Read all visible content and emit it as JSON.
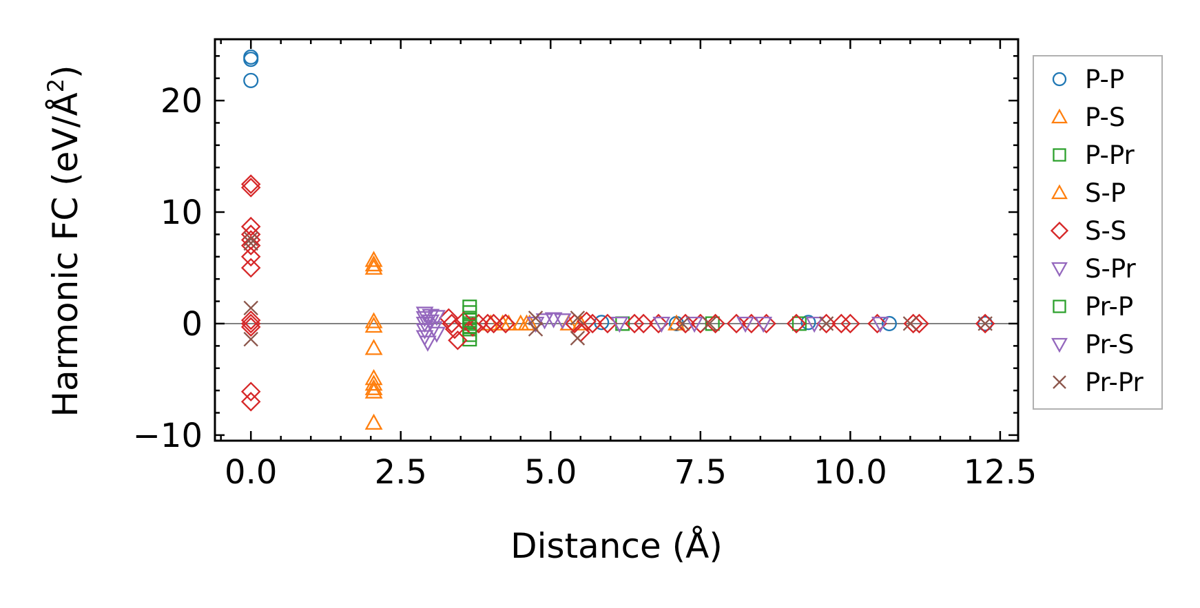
{
  "chart_data": {
    "type": "scatter",
    "title": "",
    "xlabel": "Distance (Å)",
    "ylabel": "Harmonic FC (eV/Å",
    "ylabel_sup": "2",
    "ylabel_close": ")",
    "xlim": [
      -0.6,
      12.8
    ],
    "ylim": [
      -10.5,
      25.5
    ],
    "xticks": [
      0.0,
      2.5,
      5.0,
      7.5,
      10.0,
      12.5
    ],
    "xtick_labels": [
      "0.0",
      "2.5",
      "5.0",
      "7.5",
      "10.0",
      "12.5"
    ],
    "yticks": [
      -10,
      0,
      10,
      20
    ],
    "ytick_labels": [
      "−10",
      "0",
      "10",
      "20"
    ],
    "zero_line": true,
    "legend_position": "right",
    "series": [
      {
        "name": "P-P",
        "marker": "circle",
        "color": "#1f77b4",
        "points": [
          [
            0,
            23.9
          ],
          [
            0,
            23.7
          ],
          [
            0,
            21.8
          ],
          [
            5.85,
            0.1
          ],
          [
            7.1,
            0.0
          ],
          [
            9.3,
            0.1
          ],
          [
            10.65,
            0.0
          ],
          [
            12.25,
            0.0
          ]
        ]
      },
      {
        "name": "P-S",
        "marker": "triangle-up",
        "color": "#ff7f0e",
        "points": [
          [
            2.05,
            5.7
          ],
          [
            2.05,
            5.3
          ],
          [
            2.05,
            5.0
          ],
          [
            2.05,
            0.2
          ],
          [
            2.05,
            -0.2
          ],
          [
            2.05,
            -2.2
          ],
          [
            2.05,
            -4.9
          ],
          [
            2.05,
            -5.4
          ],
          [
            2.05,
            -5.8
          ],
          [
            2.05,
            -6.1
          ],
          [
            2.05,
            -8.9
          ],
          [
            4.0,
            0.0
          ],
          [
            4.3,
            0.0
          ],
          [
            4.5,
            0.0
          ],
          [
            4.65,
            0.0
          ],
          [
            5.3,
            0.0
          ],
          [
            7.1,
            0.0
          ]
        ]
      },
      {
        "name": "P-Pr",
        "marker": "square",
        "color": "#2ca02c",
        "points": [
          [
            3.65,
            1.5
          ],
          [
            3.65,
            1.0
          ],
          [
            3.65,
            0.5
          ],
          [
            3.65,
            0.0
          ],
          [
            3.65,
            -0.5
          ],
          [
            3.65,
            -1.0
          ],
          [
            3.65,
            -1.4
          ],
          [
            6.2,
            0.0
          ],
          [
            7.7,
            0.0
          ],
          [
            9.15,
            0.0
          ]
        ]
      },
      {
        "name": "S-P",
        "marker": "triangle-up",
        "color": "#ff7f0e",
        "points": [
          [
            4.2,
            0.0
          ],
          [
            4.6,
            0.0
          ],
          [
            5.5,
            0.0
          ]
        ]
      },
      {
        "name": "S-S",
        "marker": "diamond",
        "color": "#d62728",
        "points": [
          [
            0,
            12.5
          ],
          [
            0,
            12.2
          ],
          [
            0,
            8.7
          ],
          [
            0,
            8.0
          ],
          [
            0,
            7.5
          ],
          [
            0,
            7.0
          ],
          [
            0,
            6.0
          ],
          [
            0,
            5.0
          ],
          [
            0,
            0.3
          ],
          [
            0,
            0.0
          ],
          [
            0,
            -0.3
          ],
          [
            0,
            -6.1
          ],
          [
            0,
            -7.0
          ],
          [
            3.3,
            0.5
          ],
          [
            3.35,
            0.0
          ],
          [
            3.4,
            -0.5
          ],
          [
            3.45,
            -1.5
          ],
          [
            3.55,
            0.2
          ],
          [
            3.7,
            -0.3
          ],
          [
            3.8,
            0.0
          ],
          [
            3.95,
            0.0
          ],
          [
            4.05,
            0.0
          ],
          [
            4.25,
            0.0
          ],
          [
            5.4,
            0.0
          ],
          [
            5.5,
            -0.8
          ],
          [
            5.6,
            0.2
          ],
          [
            5.7,
            0.0
          ],
          [
            5.95,
            0.0
          ],
          [
            6.4,
            0.0
          ],
          [
            6.55,
            0.0
          ],
          [
            6.8,
            0.0
          ],
          [
            7.25,
            0.0
          ],
          [
            7.5,
            0.0
          ],
          [
            7.75,
            0.0
          ],
          [
            8.1,
            0.0
          ],
          [
            8.35,
            0.0
          ],
          [
            8.6,
            0.0
          ],
          [
            9.1,
            0.0
          ],
          [
            9.6,
            0.0
          ],
          [
            9.85,
            0.0
          ],
          [
            10.0,
            0.0
          ],
          [
            10.45,
            0.0
          ],
          [
            11.05,
            0.0
          ],
          [
            11.15,
            0.0
          ],
          [
            12.25,
            0.0
          ]
        ]
      },
      {
        "name": "S-Pr",
        "marker": "triangle-down",
        "color": "#9467bd",
        "points": [
          [
            2.9,
            0.9
          ],
          [
            2.9,
            0.5
          ],
          [
            2.9,
            0.0
          ],
          [
            2.9,
            -0.6
          ],
          [
            2.9,
            -1.2
          ],
          [
            2.95,
            -1.7
          ],
          [
            3.0,
            0.7
          ],
          [
            3.0,
            0.2
          ],
          [
            3.05,
            -0.4
          ],
          [
            3.1,
            0.6
          ],
          [
            3.1,
            -0.9
          ],
          [
            4.9,
            0.3
          ],
          [
            5.05,
            0.4
          ],
          [
            5.2,
            0.3
          ]
        ]
      },
      {
        "name": "Pr-P",
        "marker": "square",
        "color": "#2ca02c",
        "points": [
          [
            3.65,
            0.3
          ],
          [
            3.65,
            -0.3
          ]
        ]
      },
      {
        "name": "Pr-S",
        "marker": "triangle-down",
        "color": "#9467bd",
        "points": [
          [
            4.75,
            0.0
          ],
          [
            6.15,
            0.0
          ],
          [
            6.85,
            0.0
          ],
          [
            7.4,
            0.0
          ],
          [
            8.25,
            0.0
          ],
          [
            8.55,
            0.0
          ],
          [
            9.4,
            0.0
          ],
          [
            10.5,
            0.0
          ]
        ]
      },
      {
        "name": "Pr-Pr",
        "marker": "x",
        "color": "#8c564b",
        "points": [
          [
            0,
            7.6
          ],
          [
            0,
            7.2
          ],
          [
            0,
            1.4
          ],
          [
            0,
            -1.4
          ],
          [
            4.75,
            0.5
          ],
          [
            4.75,
            -0.5
          ],
          [
            5.45,
            0.5
          ],
          [
            5.45,
            -1.3
          ],
          [
            7.2,
            0.0
          ],
          [
            7.65,
            0.0
          ],
          [
            9.6,
            0.0
          ],
          [
            11.0,
            0.0
          ],
          [
            12.25,
            0.0
          ]
        ]
      }
    ]
  }
}
